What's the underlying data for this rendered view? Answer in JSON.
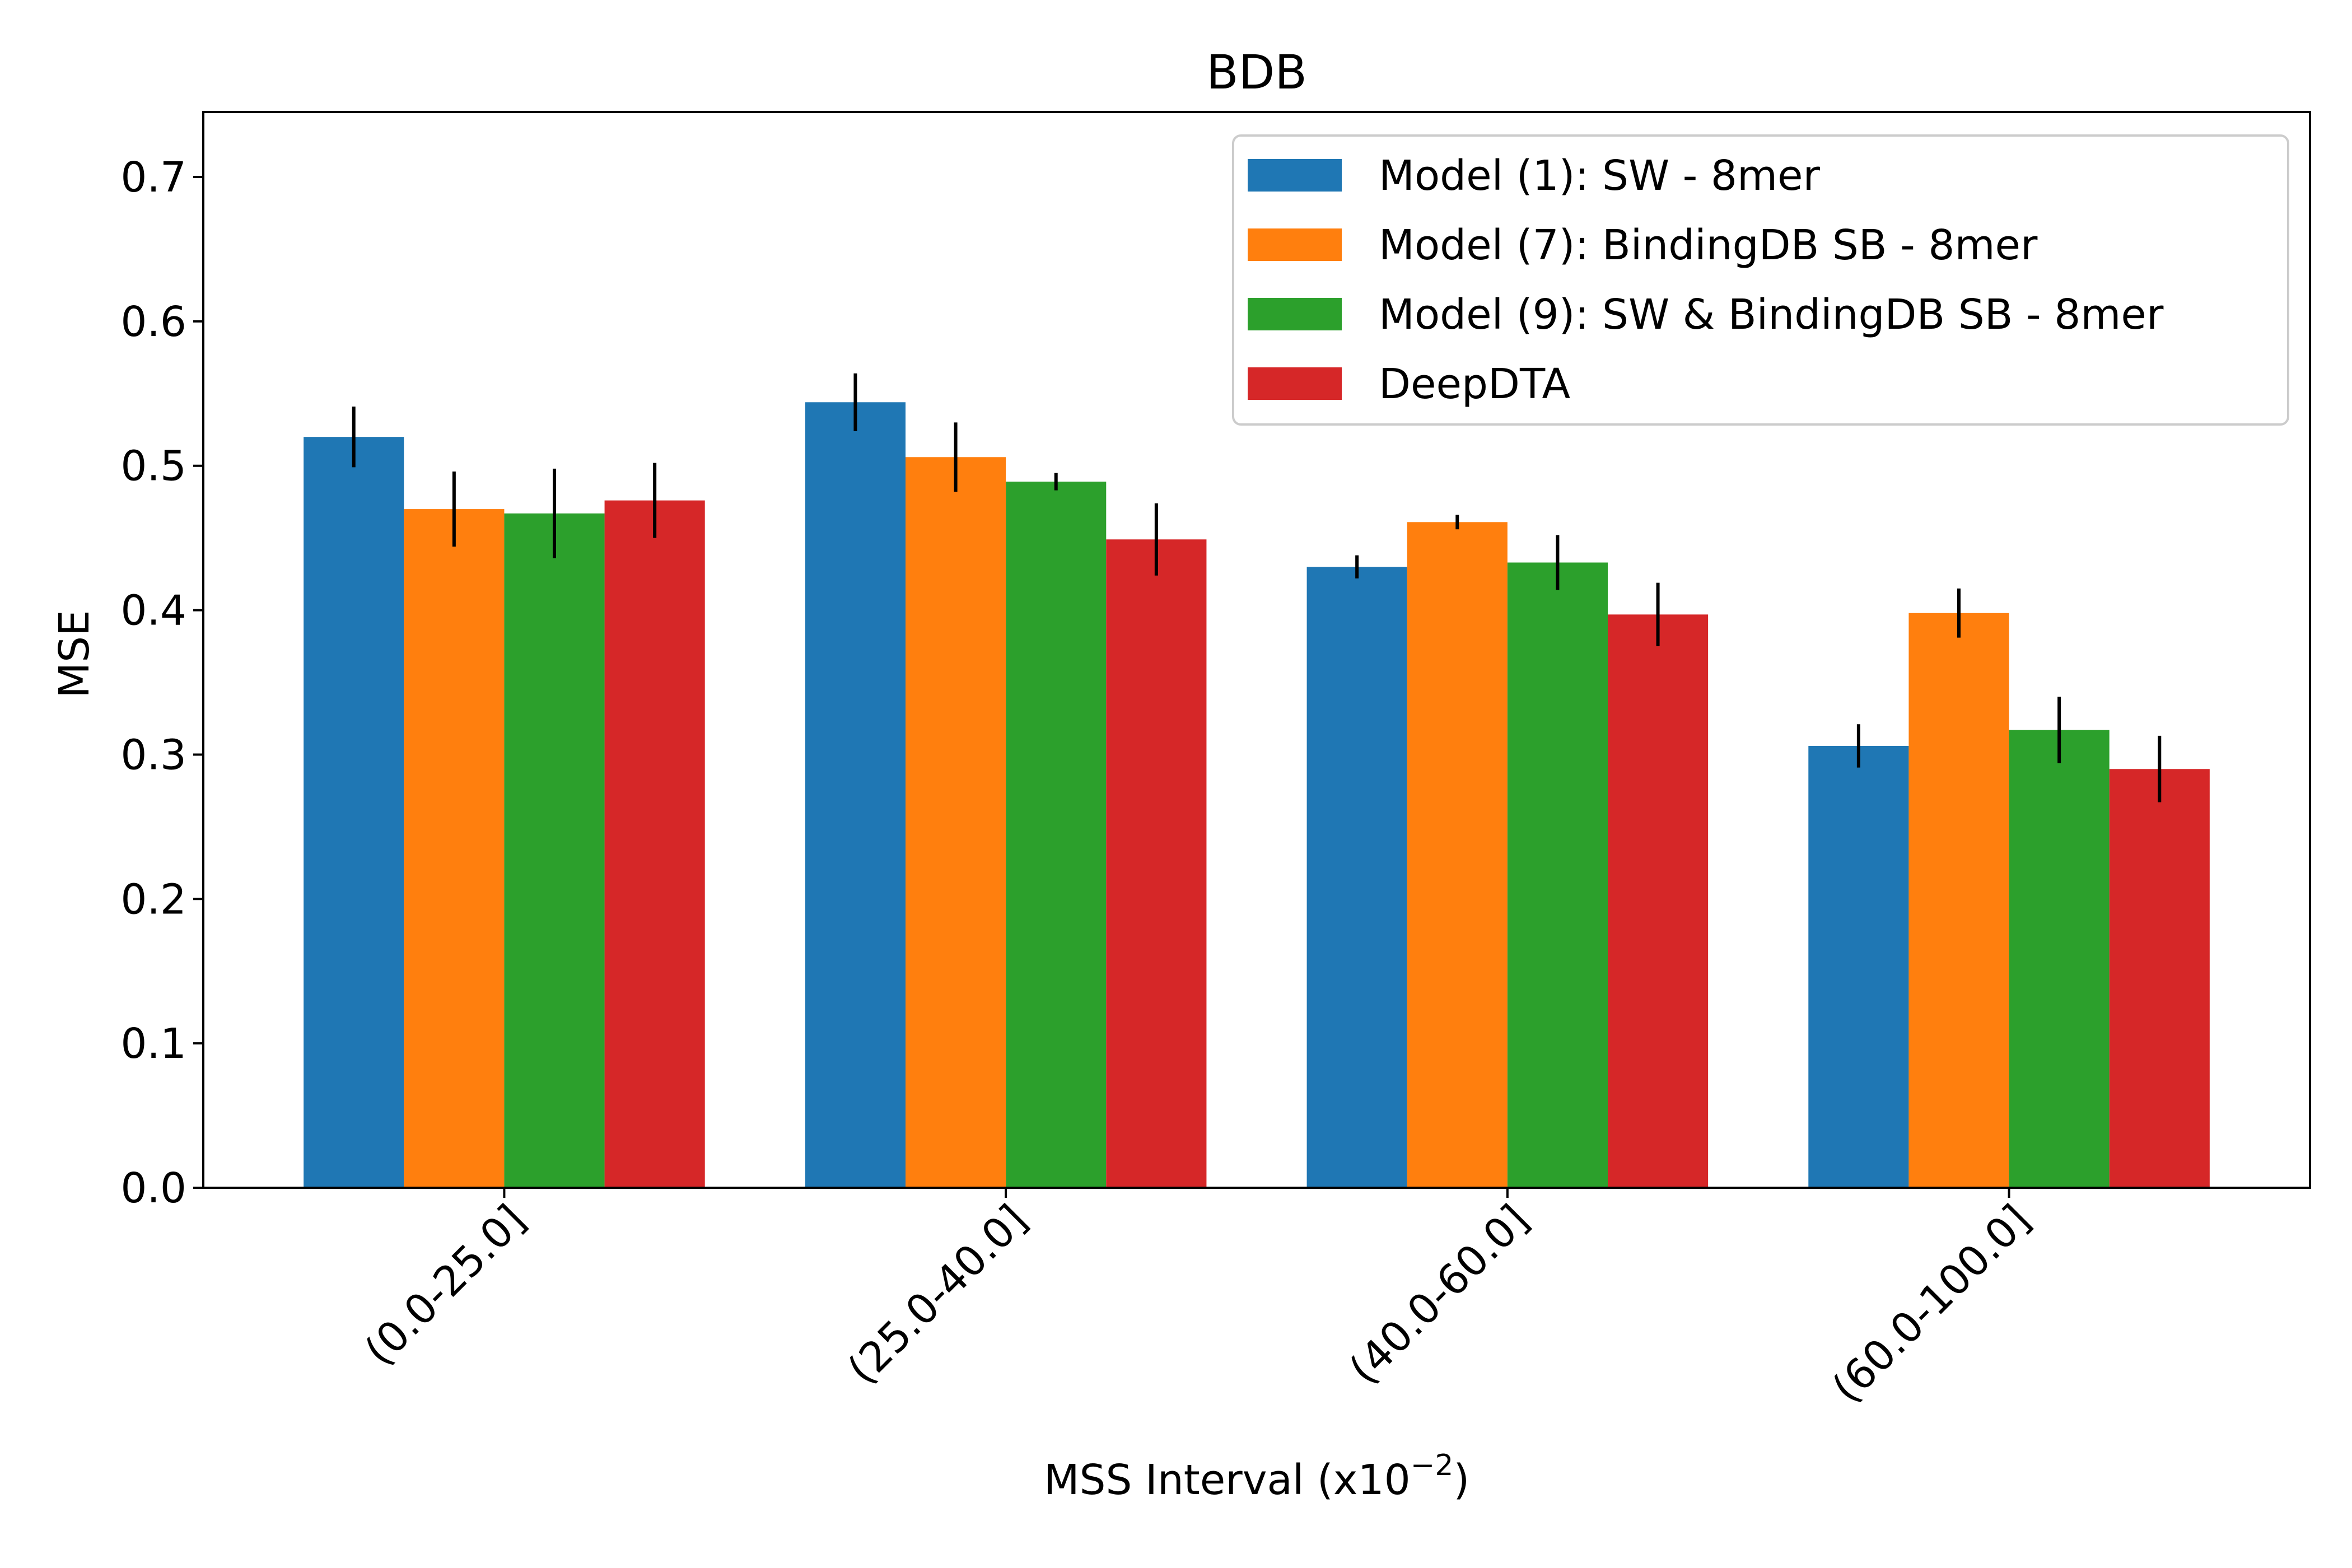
{
  "chart_data": {
    "type": "bar",
    "title": "BDB",
    "xlabel": "MSS Interval (x10",
    "xlabel_exponent": "−2",
    "xlabel_suffix": ")",
    "ylabel": "MSE",
    "ylim": [
      0,
      0.745
    ],
    "yticks": [
      "0.0",
      "0.1",
      "0.2",
      "0.3",
      "0.4",
      "0.5",
      "0.6",
      "0.7"
    ],
    "categories": [
      "(0.0-25.0]",
      "(25.0-40.0]",
      "(40.0-60.0]",
      "(60.0-100.0]"
    ],
    "legend_position": "top-right",
    "grid": false,
    "error_bars": true,
    "series": [
      {
        "name": "Model (1): SW - 8mer",
        "color": "#1f77b4",
        "values": [
          0.52,
          0.544,
          0.43,
          0.306
        ],
        "errors": [
          0.021,
          0.02,
          0.008,
          0.015
        ]
      },
      {
        "name": "Model (7): BindingDB SB - 8mer",
        "color": "#ff7f0e",
        "values": [
          0.47,
          0.506,
          0.461,
          0.398
        ],
        "errors": [
          0.026,
          0.024,
          0.005,
          0.017
        ]
      },
      {
        "name": "Model (9): SW & BindingDB SB - 8mer",
        "color": "#2ca02c",
        "values": [
          0.467,
          0.489,
          0.433,
          0.317
        ],
        "errors": [
          0.031,
          0.006,
          0.019,
          0.023
        ]
      },
      {
        "name": "DeepDTA",
        "color": "#d62728",
        "values": [
          0.476,
          0.449,
          0.397,
          0.29
        ],
        "errors": [
          0.026,
          0.025,
          0.022,
          0.023
        ]
      }
    ]
  }
}
